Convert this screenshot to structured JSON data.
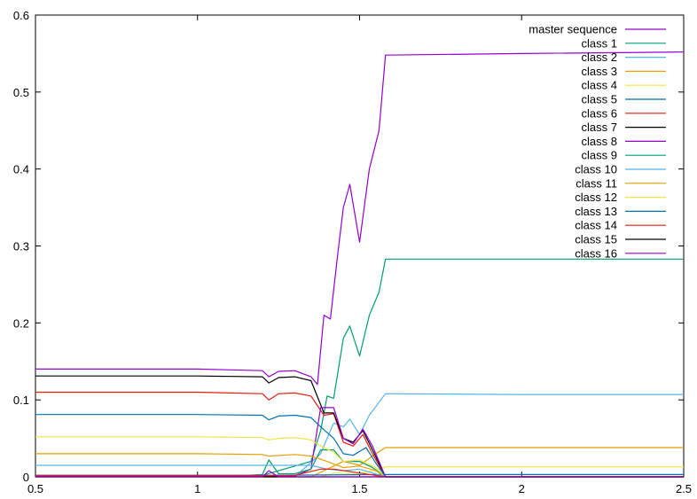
{
  "chart_data": {
    "type": "line",
    "title": "",
    "xlabel": "",
    "ylabel": "",
    "xlim": [
      0.5,
      2.5
    ],
    "ylim": [
      0,
      0.6
    ],
    "x_ticks": [
      0.5,
      1,
      1.5,
      2,
      2.5
    ],
    "x_tick_labels": [
      "0.5",
      "1",
      "1.5",
      "2",
      "2.5"
    ],
    "y_ticks": [
      0,
      0.1,
      0.2,
      0.3,
      0.4,
      0.5,
      0.6
    ],
    "y_tick_labels": [
      "0",
      "0.1",
      "0.2",
      "0.3",
      "0.4",
      "0.5",
      "0.6"
    ],
    "grid": false,
    "legend_position": "top-right",
    "series": [
      {
        "name": "master sequence",
        "color": "#9400d3",
        "points": [
          [
            0.5,
            0.14
          ],
          [
            1.0,
            0.14
          ],
          [
            1.2,
            0.138
          ],
          [
            1.22,
            0.13
          ],
          [
            1.25,
            0.137
          ],
          [
            1.3,
            0.138
          ],
          [
            1.35,
            0.13
          ],
          [
            1.37,
            0.12
          ],
          [
            1.39,
            0.21
          ],
          [
            1.41,
            0.205
          ],
          [
            1.43,
            0.28
          ],
          [
            1.45,
            0.35
          ],
          [
            1.47,
            0.38
          ],
          [
            1.5,
            0.305
          ],
          [
            1.53,
            0.4
          ],
          [
            1.56,
            0.45
          ],
          [
            1.58,
            0.548
          ],
          [
            2.0,
            0.55
          ],
          [
            2.5,
            0.552
          ]
        ]
      },
      {
        "name": "class 1",
        "color": "#009e73",
        "points": [
          [
            0.5,
            0.002
          ],
          [
            1.2,
            0.002
          ],
          [
            1.35,
            0.02
          ],
          [
            1.38,
            0.06
          ],
          [
            1.4,
            0.105
          ],
          [
            1.42,
            0.102
          ],
          [
            1.45,
            0.18
          ],
          [
            1.47,
            0.196
          ],
          [
            1.5,
            0.157
          ],
          [
            1.53,
            0.21
          ],
          [
            1.56,
            0.24
          ],
          [
            1.58,
            0.283
          ],
          [
            2.0,
            0.283
          ],
          [
            2.5,
            0.283
          ]
        ]
      },
      {
        "name": "class 2",
        "color": "#56b4e9",
        "points": [
          [
            0.5,
            0.0
          ],
          [
            1.3,
            0.0
          ],
          [
            1.38,
            0.03
          ],
          [
            1.42,
            0.07
          ],
          [
            1.45,
            0.065
          ],
          [
            1.47,
            0.075
          ],
          [
            1.5,
            0.055
          ],
          [
            1.53,
            0.08
          ],
          [
            1.58,
            0.108
          ],
          [
            2.0,
            0.107
          ],
          [
            2.5,
            0.107
          ]
        ]
      },
      {
        "name": "class 3",
        "color": "#e69f00",
        "points": [
          [
            0.5,
            0.0
          ],
          [
            1.35,
            0.0
          ],
          [
            1.4,
            0.01
          ],
          [
            1.45,
            0.02
          ],
          [
            1.5,
            0.015
          ],
          [
            1.55,
            0.03
          ],
          [
            1.58,
            0.038
          ],
          [
            2.0,
            0.038
          ],
          [
            2.5,
            0.038
          ]
        ]
      },
      {
        "name": "class 4",
        "color": "#f0e442",
        "points": [
          [
            0.5,
            0.0
          ],
          [
            1.38,
            0.0
          ],
          [
            1.42,
            0.005
          ],
          [
            1.5,
            0.004
          ],
          [
            1.55,
            0.009
          ],
          [
            1.58,
            0.013
          ],
          [
            2.0,
            0.013
          ],
          [
            2.5,
            0.013
          ]
        ]
      },
      {
        "name": "class 5",
        "color": "#0072b2",
        "points": [
          [
            0.5,
            0.0
          ],
          [
            1.58,
            0.003
          ],
          [
            2.5,
            0.003
          ]
        ]
      },
      {
        "name": "class 6",
        "color": "#e51e10",
        "points": [
          [
            0.5,
            0.11
          ],
          [
            1.0,
            0.11
          ],
          [
            1.2,
            0.108
          ],
          [
            1.22,
            0.1
          ],
          [
            1.25,
            0.108
          ],
          [
            1.3,
            0.109
          ],
          [
            1.35,
            0.105
          ],
          [
            1.39,
            0.08
          ],
          [
            1.42,
            0.082
          ],
          [
            1.45,
            0.045
          ],
          [
            1.48,
            0.04
          ],
          [
            1.51,
            0.055
          ],
          [
            1.54,
            0.03
          ],
          [
            1.58,
            0.0
          ],
          [
            2.5,
            0.0
          ]
        ]
      },
      {
        "name": "class 7",
        "color": "#000000",
        "points": [
          [
            0.5,
            0.131
          ],
          [
            1.0,
            0.131
          ],
          [
            1.2,
            0.13
          ],
          [
            1.22,
            0.122
          ],
          [
            1.25,
            0.129
          ],
          [
            1.3,
            0.13
          ],
          [
            1.35,
            0.125
          ],
          [
            1.39,
            0.083
          ],
          [
            1.42,
            0.083
          ],
          [
            1.45,
            0.05
          ],
          [
            1.48,
            0.045
          ],
          [
            1.51,
            0.06
          ],
          [
            1.54,
            0.035
          ],
          [
            1.58,
            0.0
          ],
          [
            2.5,
            0.0
          ]
        ]
      },
      {
        "name": "class 8",
        "color": "#9400d3",
        "points": [
          [
            0.5,
            0.001
          ],
          [
            1.0,
            0.001
          ],
          [
            1.2,
            0.001
          ],
          [
            1.3,
            0.001
          ],
          [
            1.35,
            0.01
          ],
          [
            1.38,
            0.09
          ],
          [
            1.42,
            0.09
          ],
          [
            1.45,
            0.05
          ],
          [
            1.48,
            0.043
          ],
          [
            1.51,
            0.062
          ],
          [
            1.54,
            0.04
          ],
          [
            1.58,
            0.0
          ],
          [
            2.5,
            0.0
          ]
        ]
      },
      {
        "name": "class 9",
        "color": "#009e73",
        "points": [
          [
            0.5,
            0.002
          ],
          [
            1.15,
            0.002
          ],
          [
            1.2,
            0.003
          ],
          [
            1.22,
            0.022
          ],
          [
            1.25,
            0.004
          ],
          [
            1.3,
            0.004
          ],
          [
            1.35,
            0.01
          ],
          [
            1.38,
            0.035
          ],
          [
            1.42,
            0.035
          ],
          [
            1.45,
            0.02
          ],
          [
            1.5,
            0.02
          ],
          [
            1.54,
            0.012
          ],
          [
            1.58,
            0.0
          ],
          [
            2.5,
            0.0
          ]
        ]
      },
      {
        "name": "class 10",
        "color": "#56b4e9",
        "points": [
          [
            0.5,
            0.015
          ],
          [
            1.2,
            0.015
          ],
          [
            1.35,
            0.015
          ],
          [
            1.4,
            0.01
          ],
          [
            1.45,
            0.008
          ],
          [
            1.5,
            0.01
          ],
          [
            1.58,
            0.0
          ],
          [
            2.5,
            0.0
          ]
        ]
      },
      {
        "name": "class 11",
        "color": "#e69f00",
        "points": [
          [
            0.5,
            0.03
          ],
          [
            1.0,
            0.03
          ],
          [
            1.2,
            0.029
          ],
          [
            1.22,
            0.027
          ],
          [
            1.3,
            0.029
          ],
          [
            1.35,
            0.027
          ],
          [
            1.4,
            0.02
          ],
          [
            1.45,
            0.012
          ],
          [
            1.5,
            0.014
          ],
          [
            1.55,
            0.008
          ],
          [
            1.58,
            0.0
          ],
          [
            2.5,
            0.0
          ]
        ]
      },
      {
        "name": "class 12",
        "color": "#f0e442",
        "points": [
          [
            0.5,
            0.052
          ],
          [
            1.0,
            0.052
          ],
          [
            1.2,
            0.051
          ],
          [
            1.22,
            0.048
          ],
          [
            1.25,
            0.05
          ],
          [
            1.3,
            0.051
          ],
          [
            1.35,
            0.048
          ],
          [
            1.38,
            0.04
          ],
          [
            1.42,
            0.032
          ],
          [
            1.45,
            0.02
          ],
          [
            1.5,
            0.022
          ],
          [
            1.55,
            0.012
          ],
          [
            1.58,
            0.0
          ],
          [
            2.5,
            0.0
          ]
        ]
      },
      {
        "name": "class 13",
        "color": "#0072b2",
        "points": [
          [
            0.5,
            0.081
          ],
          [
            1.0,
            0.081
          ],
          [
            1.2,
            0.08
          ],
          [
            1.22,
            0.074
          ],
          [
            1.25,
            0.079
          ],
          [
            1.3,
            0.08
          ],
          [
            1.35,
            0.077
          ],
          [
            1.38,
            0.065
          ],
          [
            1.42,
            0.05
          ],
          [
            1.45,
            0.03
          ],
          [
            1.48,
            0.028
          ],
          [
            1.52,
            0.038
          ],
          [
            1.55,
            0.018
          ],
          [
            1.58,
            0.0
          ],
          [
            2.5,
            0.0
          ]
        ]
      },
      {
        "name": "class 14",
        "color": "#e51e10",
        "points": [
          [
            0.5,
            0.002
          ],
          [
            1.2,
            0.002
          ],
          [
            1.3,
            0.002
          ],
          [
            1.38,
            0.01
          ],
          [
            1.42,
            0.01
          ],
          [
            1.5,
            0.005
          ],
          [
            1.58,
            0.0
          ],
          [
            2.5,
            0.0
          ]
        ]
      },
      {
        "name": "class 15",
        "color": "#000000",
        "points": [
          [
            0.5,
            0.0
          ],
          [
            1.58,
            0.0
          ],
          [
            2.5,
            0.0
          ]
        ]
      },
      {
        "name": "class 16",
        "color": "#9400d3",
        "points": [
          [
            0.5,
            0.0
          ],
          [
            1.2,
            0.0
          ],
          [
            1.22,
            0.008
          ],
          [
            1.25,
            0.0
          ],
          [
            1.58,
            0.0
          ],
          [
            2.5,
            0.0
          ]
        ]
      }
    ]
  }
}
